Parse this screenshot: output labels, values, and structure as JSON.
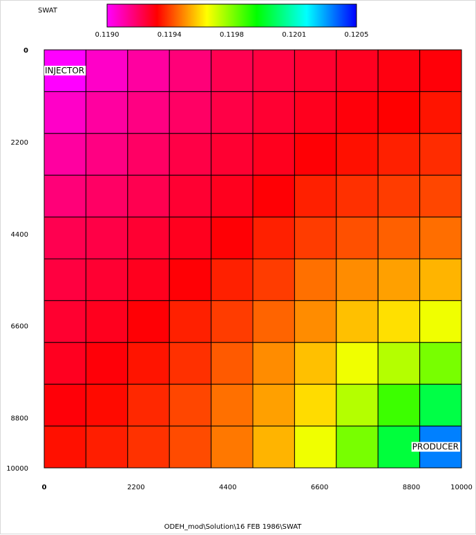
{
  "chart_data": {
    "type": "heatmap",
    "property_label": "SWAT",
    "footer": "ODEH_mod\\Solution\\16 FEB 1986\\SWAT",
    "colorbar": {
      "min": 0.119,
      "max": 0.1205,
      "tick_labels": [
        "0.1190",
        "0.1194",
        "0.1198",
        "0.1201",
        "0.1205"
      ],
      "stops": [
        "#ff00ff",
        "#ff0000",
        "#ffff00",
        "#00ff00",
        "#00ffff",
        "#0000ff"
      ]
    },
    "x_axis": {
      "range": [
        0,
        10000
      ],
      "tick_values": [
        0,
        2200,
        4400,
        6600,
        8800,
        10000
      ],
      "tick_labels": [
        "0",
        "2200",
        "4400",
        "6600",
        "8800",
        "10000"
      ]
    },
    "y_axis": {
      "range": [
        0,
        10000
      ],
      "tick_values": [
        0,
        2200,
        4400,
        6600,
        8800,
        10000
      ],
      "tick_labels": [
        "0",
        "2200",
        "4400",
        "6600",
        "8800",
        "10000"
      ]
    },
    "grid": {
      "nx": 10,
      "ny": 10,
      "cell_size": 1000
    },
    "cell_colors": [
      [
        "#ff00ff",
        "#ff00c8",
        "#ff00a0",
        "#ff0078",
        "#ff0050",
        "#ff0040",
        "#ff0030",
        "#ff0020",
        "#ff0010",
        "#ff0008"
      ],
      [
        "#ff00c8",
        "#ff00a0",
        "#ff0082",
        "#ff0064",
        "#ff0046",
        "#ff0032",
        "#ff001e",
        "#ff000a",
        "#ff0000",
        "#ff1400"
      ],
      [
        "#ff00a0",
        "#ff0082",
        "#ff0064",
        "#ff0046",
        "#ff0032",
        "#ff001e",
        "#ff0005",
        "#ff1000",
        "#ff2000",
        "#ff2c00"
      ],
      [
        "#ff0078",
        "#ff0064",
        "#ff0050",
        "#ff0032",
        "#ff001e",
        "#ff0005",
        "#ff2000",
        "#ff3000",
        "#ff3c00",
        "#ff4600"
      ],
      [
        "#ff0050",
        "#ff0046",
        "#ff0032",
        "#ff001e",
        "#ff0005",
        "#ff2000",
        "#ff3c00",
        "#ff5000",
        "#ff6000",
        "#ff6e00"
      ],
      [
        "#ff0040",
        "#ff0032",
        "#ff001e",
        "#ff0005",
        "#ff2000",
        "#ff3c00",
        "#ff7000",
        "#ff8c00",
        "#ffa000",
        "#ffb400"
      ],
      [
        "#ff0030",
        "#ff001e",
        "#ff0005",
        "#ff2000",
        "#ff3c00",
        "#ff6400",
        "#ff8c00",
        "#ffc000",
        "#ffe000",
        "#f0ff00"
      ],
      [
        "#ff0020",
        "#ff0008",
        "#ff1400",
        "#ff3000",
        "#ff5a00",
        "#ff8c00",
        "#ffc000",
        "#f0ff00",
        "#b4ff00",
        "#78ff00"
      ],
      [
        "#ff0008",
        "#ff0a00",
        "#ff2800",
        "#ff4600",
        "#ff7000",
        "#ffa000",
        "#ffdc00",
        "#b4ff00",
        "#3cff00",
        "#00ff46"
      ],
      [
        "#ff1000",
        "#ff1e00",
        "#ff3200",
        "#ff4b00",
        "#ff7800",
        "#ffb400",
        "#f0ff00",
        "#78ff00",
        "#00ff3c",
        "#0080ff"
      ]
    ],
    "wells": [
      {
        "name": "INJECTOR",
        "col": 0,
        "row": 0,
        "anchor": "top-left"
      },
      {
        "name": "PRODUCER",
        "col": 9,
        "row": 9,
        "anchor": "bottom-right"
      }
    ]
  }
}
